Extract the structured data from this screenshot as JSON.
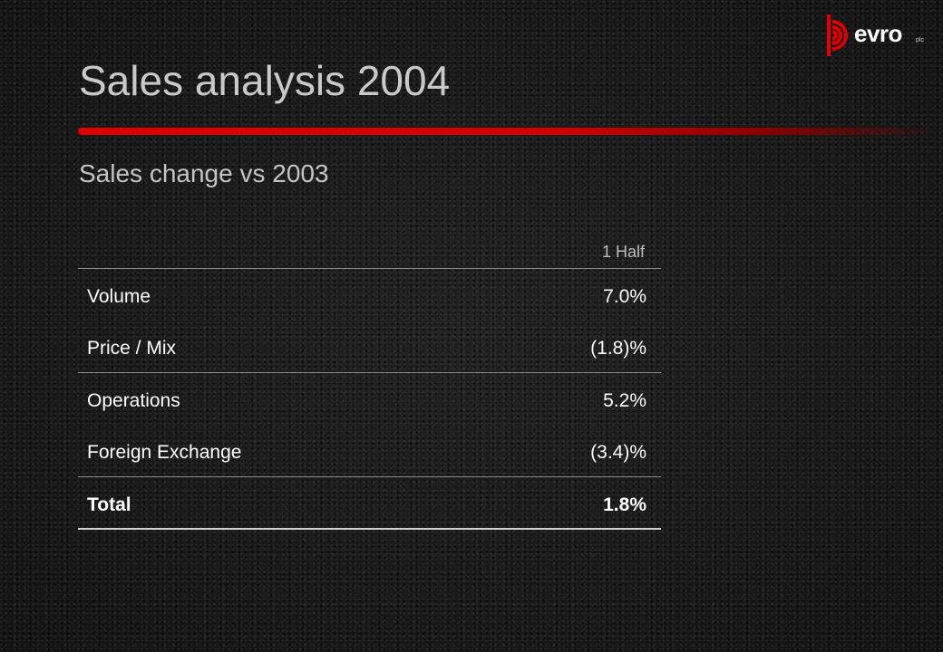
{
  "brand": {
    "name": "evro",
    "suffix": "plc",
    "accent_color": "#e00000"
  },
  "slide": {
    "title": "Sales analysis 2004",
    "subtitle": "Sales change vs 2003"
  },
  "table": {
    "column_header": "1 Half",
    "rows": [
      {
        "label": "Volume",
        "value": "7.0%"
      },
      {
        "label": "Price / Mix",
        "value": "(1.8)%"
      },
      {
        "label": "Operations",
        "value": "5.2%"
      },
      {
        "label": "Foreign Exchange",
        "value": "(3.4)%"
      },
      {
        "label": "Total",
        "value": "1.8%"
      }
    ]
  }
}
